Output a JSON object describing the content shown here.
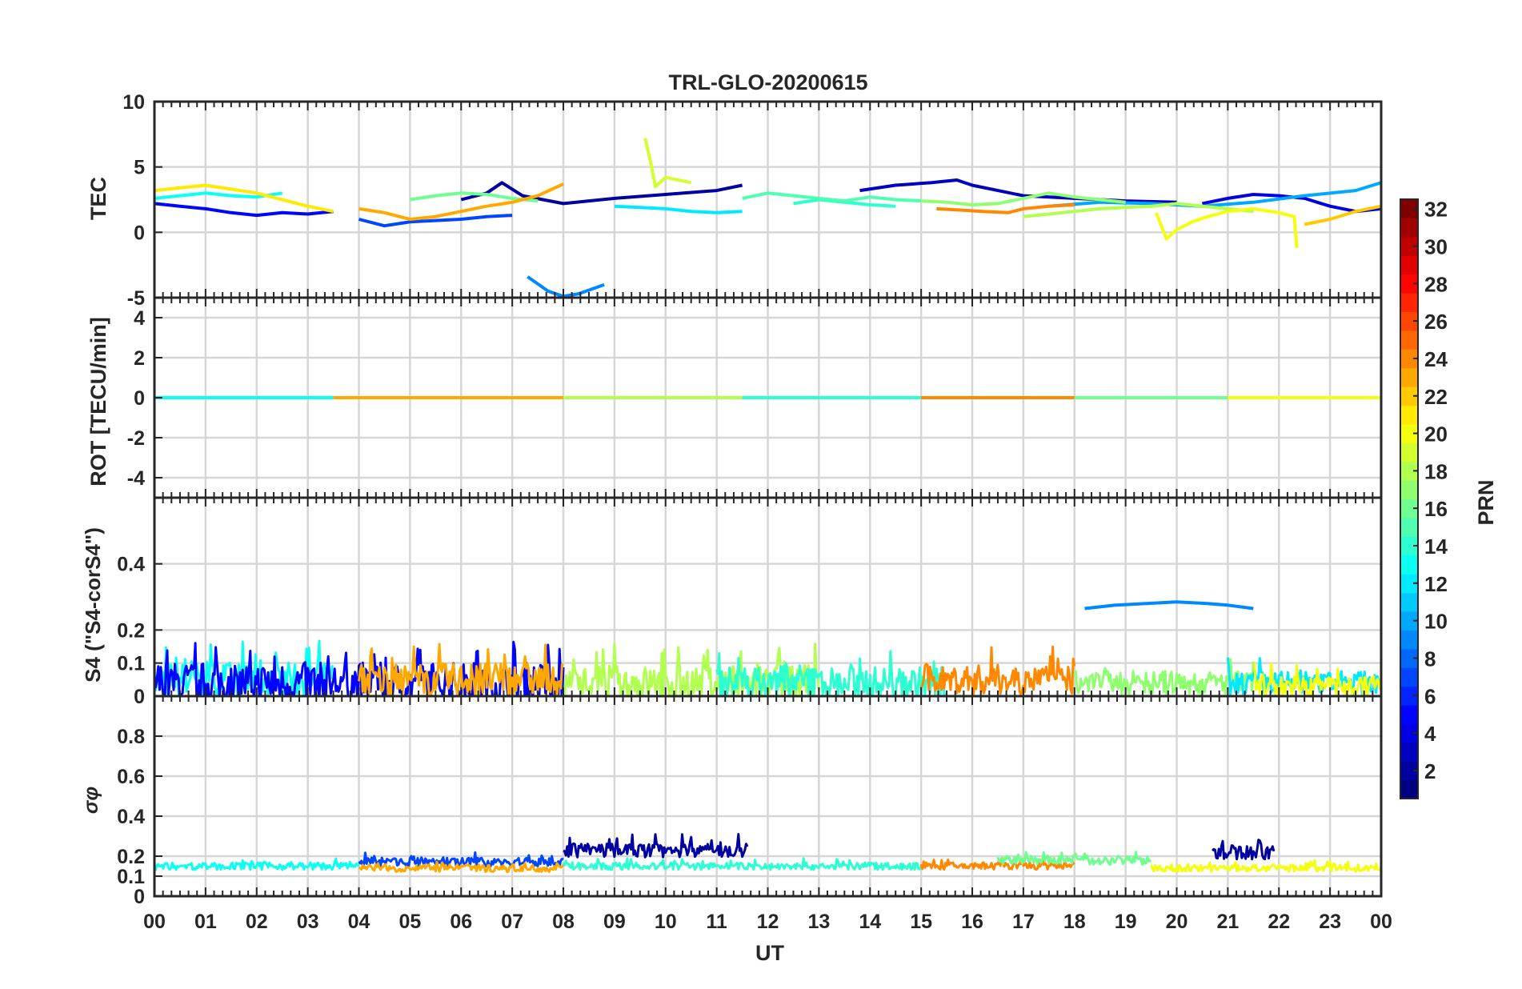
{
  "chart_data": {
    "type": "line",
    "title": "TRL-GLO-20200615",
    "xlabel": "UT",
    "x_ticks": [
      "00",
      "01",
      "02",
      "03",
      "04",
      "05",
      "06",
      "07",
      "08",
      "09",
      "10",
      "11",
      "12",
      "13",
      "14",
      "15",
      "16",
      "17",
      "18",
      "19",
      "20",
      "21",
      "22",
      "23",
      "00"
    ],
    "xlim": [
      0,
      24
    ],
    "panels": [
      {
        "id": "tec",
        "ylabel": "TEC",
        "ylim": [
          -5,
          10
        ],
        "y_ticks": [
          "-5",
          "0",
          "5",
          "10"
        ],
        "series": [
          {
            "name": "PRN 2",
            "prn": 2,
            "x": [
              6.0,
              6.5,
              6.8,
              7.2,
              8.0,
              9.0,
              10.0,
              11.0,
              11.5
            ],
            "y": [
              2.5,
              3.0,
              3.8,
              2.8,
              2.2,
              2.6,
              2.9,
              3.2,
              3.6
            ]
          },
          {
            "name": "PRN 3",
            "prn": 3,
            "x": [
              13.8,
              14.5,
              15.2,
              15.7,
              16.0,
              17.0,
              18.0,
              19.0,
              20.0
            ],
            "y": [
              3.2,
              3.6,
              3.8,
              4.0,
              3.6,
              2.8,
              2.6,
              2.4,
              2.3
            ]
          },
          {
            "name": "PRN 4",
            "prn": 4,
            "x": [
              20.5,
              21.0,
              21.5,
              22.0,
              22.5,
              23.0,
              23.5,
              24.0
            ],
            "y": [
              2.2,
              2.6,
              2.9,
              2.8,
              2.6,
              2.0,
              1.6,
              1.8
            ]
          },
          {
            "name": "PRN 5",
            "prn": 5,
            "x": [
              0.0,
              0.5,
              1.0,
              1.5,
              2.0,
              2.5,
              3.0,
              3.5
            ],
            "y": [
              2.2,
              2.0,
              1.8,
              1.5,
              1.3,
              1.5,
              1.4,
              1.6
            ]
          },
          {
            "name": "PRN 7",
            "prn": 7,
            "x": [
              4.0,
              4.5,
              5.0,
              5.5,
              6.0,
              6.5,
              7.0
            ],
            "y": [
              1.0,
              0.5,
              0.8,
              0.9,
              1.0,
              1.2,
              1.3
            ]
          },
          {
            "name": "PRN 9",
            "prn": 9,
            "x": [
              7.3,
              7.7,
              8.0,
              8.3,
              8.8
            ],
            "y": [
              -3.4,
              -4.5,
              -4.9,
              -4.7,
              -4.0
            ]
          },
          {
            "name": "PRN 10",
            "prn": 10,
            "x": [
              17.5,
              18.5,
              19.5,
              20.5,
              21.5,
              22.5,
              23.5,
              24.0
            ],
            "y": [
              2.0,
              2.3,
              2.2,
              2.0,
              2.3,
              2.8,
              3.2,
              3.8
            ]
          },
          {
            "name": "PRN 12",
            "prn": 12,
            "x": [
              9.0,
              9.5,
              10.0,
              10.5,
              11.0,
              11.5
            ],
            "y": [
              2.0,
              1.9,
              1.8,
              1.6,
              1.5,
              1.6
            ]
          },
          {
            "name": "PRN 13",
            "prn": 13,
            "x": [
              0.0,
              0.5,
              1.0,
              1.5,
              2.0,
              2.5
            ],
            "y": [
              2.6,
              2.8,
              3.0,
              2.8,
              2.7,
              3.0
            ]
          },
          {
            "name": "PRN 14",
            "prn": 14,
            "x": [
              12.5,
              13.0,
              13.5,
              14.0,
              14.5
            ],
            "y": [
              2.2,
              2.5,
              2.3,
              2.1,
              2.0
            ]
          },
          {
            "name": "PRN 15",
            "prn": 15,
            "x": [
              11.5,
              12.0,
              12.5,
              13.0,
              13.5,
              14.0,
              14.5,
              15.0
            ],
            "y": [
              2.6,
              3.0,
              2.8,
              2.6,
              2.4,
              2.7,
              2.5,
              2.4
            ]
          },
          {
            "name": "PRN 16",
            "prn": 16,
            "x": [
              5.0,
              5.5,
              6.0,
              6.5,
              7.0,
              7.5
            ],
            "y": [
              2.5,
              2.8,
              3.0,
              2.9,
              2.6,
              2.4
            ]
          },
          {
            "name": "PRN 17",
            "prn": 17,
            "x": [
              15.0,
              15.5,
              16.0,
              16.5,
              17.0,
              17.5,
              18.0,
              18.5,
              19.0
            ],
            "y": [
              2.4,
              2.3,
              2.1,
              2.2,
              2.6,
              3.0,
              2.7,
              2.5,
              2.3
            ]
          },
          {
            "name": "PRN 18",
            "prn": 18,
            "x": [
              17.0,
              17.5,
              18.0,
              18.5,
              19.0,
              19.5,
              20.0,
              20.5,
              21.0,
              21.5
            ],
            "y": [
              1.2,
              1.4,
              1.6,
              1.8,
              1.9,
              2.0,
              2.2,
              2.0,
              1.8,
              1.6
            ]
          },
          {
            "name": "PRN 19",
            "prn": 19,
            "x": [
              9.6,
              9.7,
              9.8,
              10.0,
              10.5
            ],
            "y": [
              7.2,
              5.5,
              3.5,
              4.2,
              3.8
            ]
          },
          {
            "name": "PRN 20",
            "prn": 20,
            "x": [
              19.6,
              19.8,
              20.0,
              20.3,
              20.6,
              21.0,
              21.5,
              22.0,
              22.3,
              22.35
            ],
            "y": [
              1.5,
              -0.5,
              0.2,
              0.8,
              1.2,
              1.6,
              1.8,
              1.5,
              1.2,
              -1.2
            ]
          },
          {
            "name": "PRN 21",
            "prn": 21,
            "x": [
              0.0,
              0.5,
              1.0,
              1.5,
              2.0,
              2.5,
              3.0,
              3.5
            ],
            "y": [
              3.2,
              3.4,
              3.6,
              3.3,
              3.0,
              2.5,
              2.0,
              1.6
            ]
          },
          {
            "name": "PRN 22",
            "prn": 22,
            "x": [
              22.5,
              23.0,
              23.5,
              24.0
            ],
            "y": [
              0.6,
              1.0,
              1.6,
              2.0
            ]
          },
          {
            "name": "PRN 23",
            "prn": 23,
            "x": [
              4.0,
              4.5,
              5.0,
              5.5,
              6.0,
              6.5,
              7.0,
              7.5,
              8.0
            ],
            "y": [
              1.8,
              1.5,
              1.0,
              1.2,
              1.6,
              2.0,
              2.3,
              2.8,
              3.7
            ]
          },
          {
            "name": "PRN 24",
            "prn": 24,
            "x": [
              15.3,
              15.8,
              16.2,
              16.7,
              17.0,
              17.5,
              18.0
            ],
            "y": [
              1.8,
              1.7,
              1.6,
              1.5,
              1.8,
              2.0,
              2.1
            ]
          }
        ]
      },
      {
        "id": "rot",
        "ylabel": "ROT [TECU/min]",
        "ylim": [
          -5,
          5
        ],
        "y_ticks": [
          "-4",
          "-2",
          "0",
          "2",
          "4"
        ],
        "series": [
          {
            "name": "PRN 13",
            "prn": 13,
            "x": [
              0.0,
              3.5
            ],
            "y": [
              0.0,
              0.0
            ]
          },
          {
            "name": "PRN 23",
            "prn": 23,
            "x": [
              3.5,
              8.0
            ],
            "y": [
              0.0,
              0.0
            ]
          },
          {
            "name": "PRN 18",
            "prn": 18,
            "x": [
              8.0,
              11.5
            ],
            "y": [
              0.0,
              0.0
            ]
          },
          {
            "name": "PRN 14",
            "prn": 14,
            "x": [
              11.5,
              15.0
            ],
            "y": [
              0.0,
              0.0
            ]
          },
          {
            "name": "PRN 24",
            "prn": 24,
            "x": [
              15.0,
              18.0
            ],
            "y": [
              0.0,
              0.0
            ]
          },
          {
            "name": "PRN 16",
            "prn": 16,
            "x": [
              18.0,
              21.0
            ],
            "y": [
              0.0,
              0.0
            ]
          },
          {
            "name": "PRN 20",
            "prn": 20,
            "x": [
              21.0,
              24.0
            ],
            "y": [
              0.0,
              0.0
            ]
          }
        ]
      },
      {
        "id": "s4",
        "ylabel": "S4 (\"S4-corS4\")",
        "ylim": [
          0,
          0.6
        ],
        "y_ticks": [
          "0",
          "0.1",
          "0.2",
          "0.4"
        ],
        "series": [
          {
            "name": "PRN 13 noise",
            "prn": 13,
            "x_range": [
              0.0,
              3.5
            ],
            "baseline": 0.05,
            "peak": 0.17
          },
          {
            "name": "PRN 5 noise",
            "prn": 5,
            "x_range": [
              0.0,
              8.0
            ],
            "baseline": 0.04,
            "peak": 0.18
          },
          {
            "name": "PRN 23 noise",
            "prn": 23,
            "x_range": [
              4.0,
              8.0
            ],
            "baseline": 0.05,
            "peak": 0.16
          },
          {
            "name": "PRN 18 noise",
            "prn": 18,
            "x_range": [
              8.0,
              13.0
            ],
            "baseline": 0.04,
            "peak": 0.16
          },
          {
            "name": "PRN 14 noise",
            "prn": 14,
            "x_range": [
              11.0,
              15.5
            ],
            "baseline": 0.04,
            "peak": 0.15
          },
          {
            "name": "PRN 24 noise",
            "prn": 24,
            "x_range": [
              15.0,
              18.0
            ],
            "baseline": 0.05,
            "peak": 0.15
          },
          {
            "name": "PRN 17 noise",
            "prn": 17,
            "x_range": [
              18.0,
              21.5
            ],
            "baseline": 0.04,
            "peak": 0.12
          },
          {
            "name": "PRN 12 noise",
            "prn": 12,
            "x_range": [
              21.0,
              24.0
            ],
            "baseline": 0.04,
            "peak": 0.12
          },
          {
            "name": "PRN 20 noise",
            "prn": 20,
            "x_range": [
              21.5,
              24.0
            ],
            "baseline": 0.03,
            "peak": 0.1
          },
          {
            "name": "PRN 9",
            "prn": 9,
            "x": [
              18.2,
              18.8,
              19.4,
              20.0,
              20.6,
              21.0,
              21.5
            ],
            "y": [
              0.265,
              0.275,
              0.28,
              0.285,
              0.28,
              0.275,
              0.265
            ]
          }
        ]
      },
      {
        "id": "sigma_phi",
        "ylabel": "σφ",
        "ylim": [
          0,
          1.0
        ],
        "y_ticks": [
          "0",
          "0.1",
          "0.2",
          "0.4",
          "0.6",
          "0.8"
        ],
        "series": [
          {
            "name": "PRN 13 noise",
            "prn": 13,
            "x_range": [
              0.0,
              4.0
            ],
            "baseline": 0.15,
            "peak": 0.19
          },
          {
            "name": "PRN 7 noise",
            "prn": 7,
            "x_range": [
              4.0,
              8.0
            ],
            "baseline": 0.17,
            "peak": 0.22
          },
          {
            "name": "PRN 23 noise",
            "prn": 23,
            "x_range": [
              4.0,
              8.0
            ],
            "baseline": 0.14,
            "peak": 0.18
          },
          {
            "name": "PRN 2 noise",
            "prn": 2,
            "x_range": [
              8.0,
              11.6
            ],
            "baseline": 0.23,
            "peak": 0.31
          },
          {
            "name": "PRN 14 noise",
            "prn": 14,
            "x_range": [
              8.0,
              15.0
            ],
            "baseline": 0.15,
            "peak": 0.19
          },
          {
            "name": "PRN 24 noise",
            "prn": 24,
            "x_range": [
              15.0,
              18.0
            ],
            "baseline": 0.15,
            "peak": 0.19
          },
          {
            "name": "PRN 16 noise",
            "prn": 16,
            "x_range": [
              16.5,
              19.5
            ],
            "baseline": 0.18,
            "peak": 0.23
          },
          {
            "name": "PRN 2 late noise",
            "prn": 2,
            "x_range": [
              20.7,
              21.9
            ],
            "baseline": 0.22,
            "peak": 0.3
          },
          {
            "name": "PRN 20 noise",
            "prn": 20,
            "x_range": [
              19.5,
              24.0
            ],
            "baseline": 0.14,
            "peak": 0.18
          }
        ]
      }
    ],
    "colorbar": {
      "label": "PRN",
      "colormap": "jet",
      "range": [
        1,
        32
      ],
      "ticks": [
        "2",
        "4",
        "6",
        "8",
        "10",
        "12",
        "14",
        "16",
        "18",
        "20",
        "22",
        "24",
        "26",
        "28",
        "30",
        "32"
      ]
    }
  }
}
